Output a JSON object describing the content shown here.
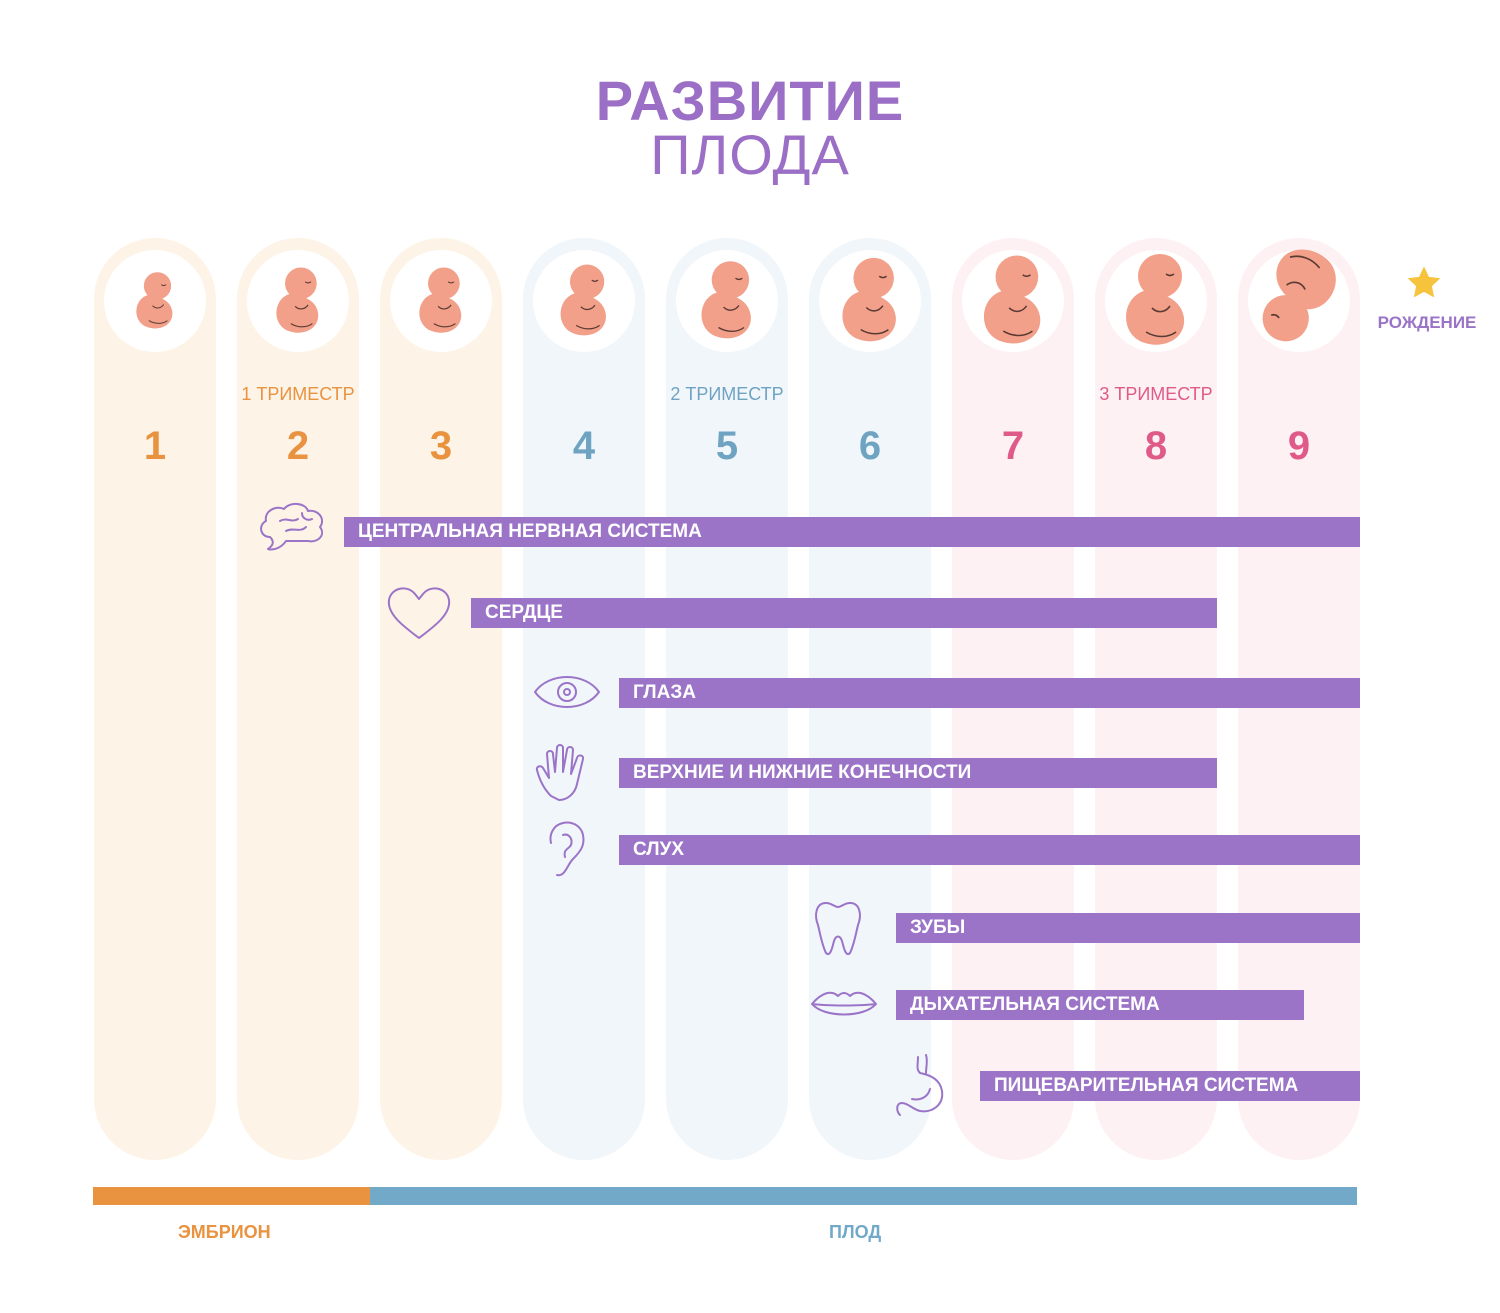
{
  "title": {
    "line1": "РАЗВИТИЕ",
    "line2": "ПЛОДА"
  },
  "colors": {
    "accent": "#9b74c7",
    "trimester1": "#e9923f",
    "trimester2": "#6fa3c2",
    "trimester3": "#e05a89",
    "col1": "#fdf4e7",
    "col2": "#f1f6fb",
    "col3": "#fdf1f4",
    "fetus": "#f2a089"
  },
  "months": [
    {
      "number": "1",
      "trimester": 1
    },
    {
      "number": "2",
      "trimester": 1
    },
    {
      "number": "3",
      "trimester": 1
    },
    {
      "number": "4",
      "trimester": 2
    },
    {
      "number": "5",
      "trimester": 2
    },
    {
      "number": "6",
      "trimester": 2
    },
    {
      "number": "7",
      "trimester": 3
    },
    {
      "number": "8",
      "trimester": 3
    },
    {
      "number": "9",
      "trimester": 3
    }
  ],
  "trimesters": [
    "1 ТРИМЕСТР",
    "2 ТРИМЕСТР",
    "3 ТРИМЕСТР"
  ],
  "birth_label": "РОЖДЕНИЕ",
  "systems": [
    {
      "label": "ЦЕНТРАЛЬНАЯ НЕРВНАЯ СИСТЕМА",
      "icon": "brain-icon",
      "start_month": 2,
      "end_month": 9
    },
    {
      "label": "СЕРДЦЕ",
      "icon": "heart-icon",
      "start_month": 3,
      "end_month": 8
    },
    {
      "label": "ГЛАЗА",
      "icon": "eye-icon",
      "start_month": 4,
      "end_month": 9
    },
    {
      "label": "ВЕРХНИЕ И НИЖНИЕ КОНЕЧНОСТИ",
      "icon": "hand-icon",
      "start_month": 4,
      "end_month": 8
    },
    {
      "label": "СЛУХ",
      "icon": "ear-icon",
      "start_month": 4,
      "end_month": 9
    },
    {
      "label": "ЗУБЫ",
      "icon": "tooth-icon",
      "start_month": 6,
      "end_month": 9
    },
    {
      "label": "ДЫХАТЕЛЬНАЯ СИСТЕМА",
      "icon": "lips-icon",
      "start_month": 6,
      "end_month": 9
    },
    {
      "label": "ПИЩЕВАРИТЕЛЬНАЯ СИСТЕМА",
      "icon": "stomach-icon",
      "start_month": 7,
      "end_month": 9
    }
  ],
  "stages": [
    {
      "label": "ЭМБРИОН",
      "color": "#e9923f"
    },
    {
      "label": "ПЛОД",
      "color": "#72a9c8"
    }
  ]
}
